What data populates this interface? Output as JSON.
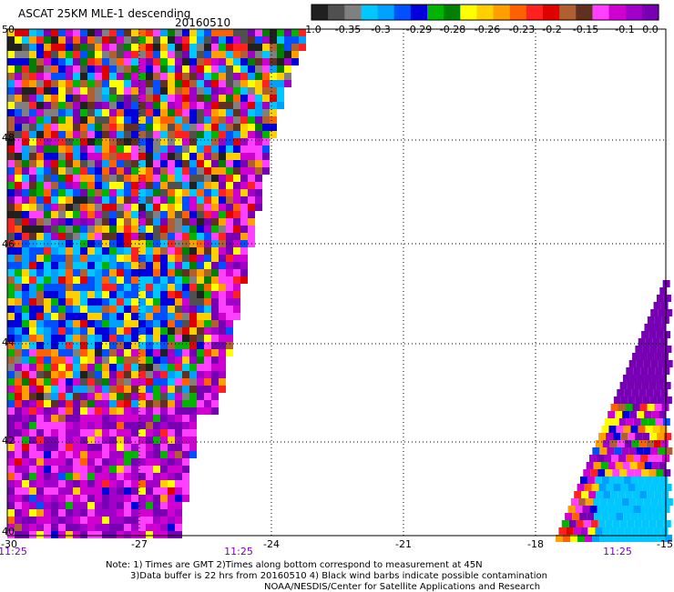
{
  "header": {
    "title": "ASCAT 25KM MLE-1 descending",
    "date": "20160510"
  },
  "colorbar": {
    "tick_labels": [
      "-1.0",
      "-0.35",
      "-0.3",
      "-0.29",
      "-0.28",
      "-0.26",
      "-0.23",
      "-0.2",
      "-0.15",
      "-0.1",
      "0.0"
    ],
    "colors": [
      "#202020",
      "#505050",
      "#808080",
      "#00c8ff",
      "#00a0ff",
      "#0050ff",
      "#0000dc",
      "#00b400",
      "#008000",
      "#ffff00",
      "#ffd000",
      "#ffa000",
      "#ff6000",
      "#ff2020",
      "#e00000",
      "#b06030",
      "#603020",
      "#ff40ff",
      "#d000d0",
      "#a000c8",
      "#7800b4"
    ]
  },
  "axes": {
    "lat_labels": [
      "50",
      "48",
      "46",
      "44",
      "42",
      "40"
    ],
    "lon_labels": [
      "-30",
      "-27",
      "-24",
      "-21",
      "-18",
      "-15"
    ],
    "time_labels": [
      "11:25",
      "11:25",
      "11:25"
    ]
  },
  "notes": {
    "line1": "Note: 1) Times are GMT 2)Times along bottom correspond to measurement at 45N",
    "line2": "3)Data buffer is 22 hrs from 20160510 4) Black wind barbs indicate possible contamination",
    "line3": "NOAA/NESDIS/Center for Satellite Applications and Research"
  },
  "map": {
    "lat_range": [
      40,
      50
    ],
    "lon_range": [
      -30,
      -15
    ],
    "grid": "dotted"
  }
}
